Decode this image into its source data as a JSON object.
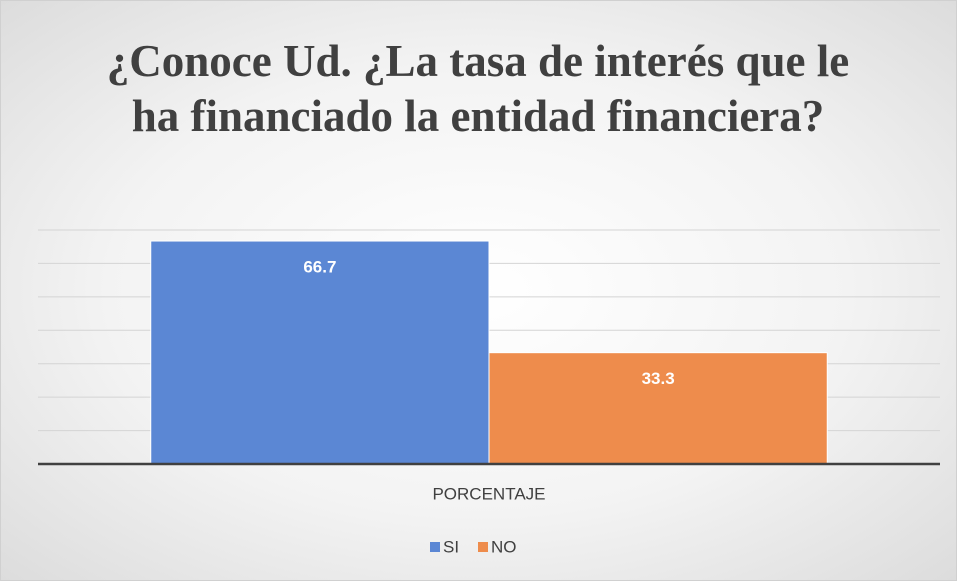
{
  "chart_data": {
    "type": "bar",
    "title": "¿Conoce Ud. ¿La tasa de interés que le ha financiado la entidad financiera?",
    "categories": [
      "PORCENTAJE"
    ],
    "series": [
      {
        "name": "SI",
        "color": "#5b87d4",
        "values": [
          66.7
        ]
      },
      {
        "name": "NO",
        "color": "#ee8c4c",
        "values": [
          33.3
        ]
      }
    ],
    "ylim": [
      0,
      70
    ],
    "yticks": [
      0,
      10,
      20,
      30,
      40,
      50,
      60,
      70
    ],
    "grid": true,
    "legend": "bottom"
  }
}
